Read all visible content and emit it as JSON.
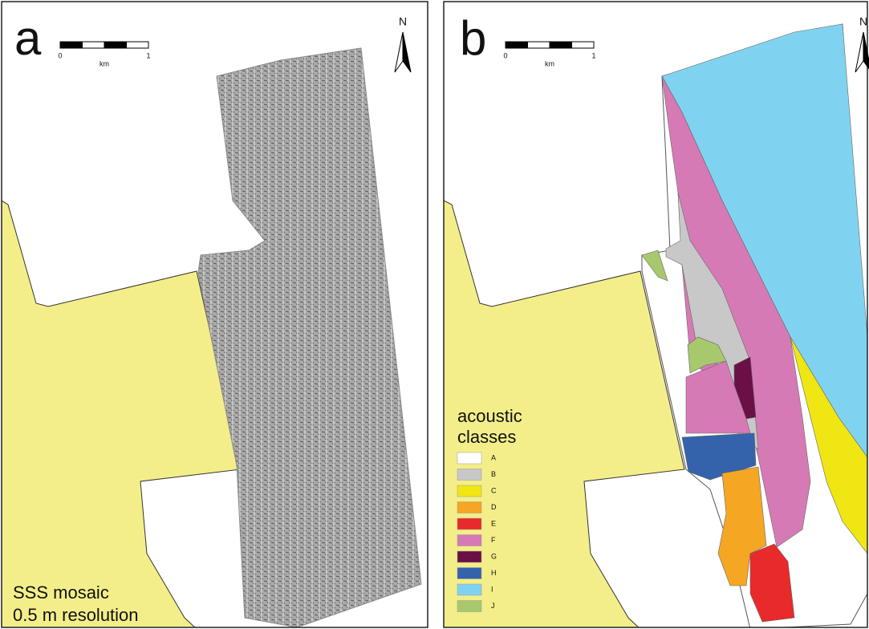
{
  "panels": [
    {
      "label": "a",
      "scale_bar": {
        "start": "0",
        "end": "1",
        "unit": "km"
      },
      "north": "N",
      "caption": [
        "SSS mosaic",
        "0.5 m resolution"
      ]
    },
    {
      "label": "b",
      "scale_bar": {
        "start": "0",
        "end": "1",
        "unit": "km"
      },
      "north": "N",
      "legend": {
        "title": [
          "acoustic",
          "classes"
        ],
        "items": [
          {
            "label": "A",
            "color": "#ffffff"
          },
          {
            "label": "B",
            "color": "#c8c8c8"
          },
          {
            "label": "C",
            "color": "#f0e614"
          },
          {
            "label": "D",
            "color": "#f5a623"
          },
          {
            "label": "E",
            "color": "#e82a2a"
          },
          {
            "label": "F",
            "color": "#d67ab6"
          },
          {
            "label": "G",
            "color": "#6b0f47"
          },
          {
            "label": "H",
            "color": "#3563ab"
          },
          {
            "label": "I",
            "color": "#80d3f0"
          },
          {
            "label": "J",
            "color": "#a8c86e"
          }
        ]
      }
    }
  ]
}
